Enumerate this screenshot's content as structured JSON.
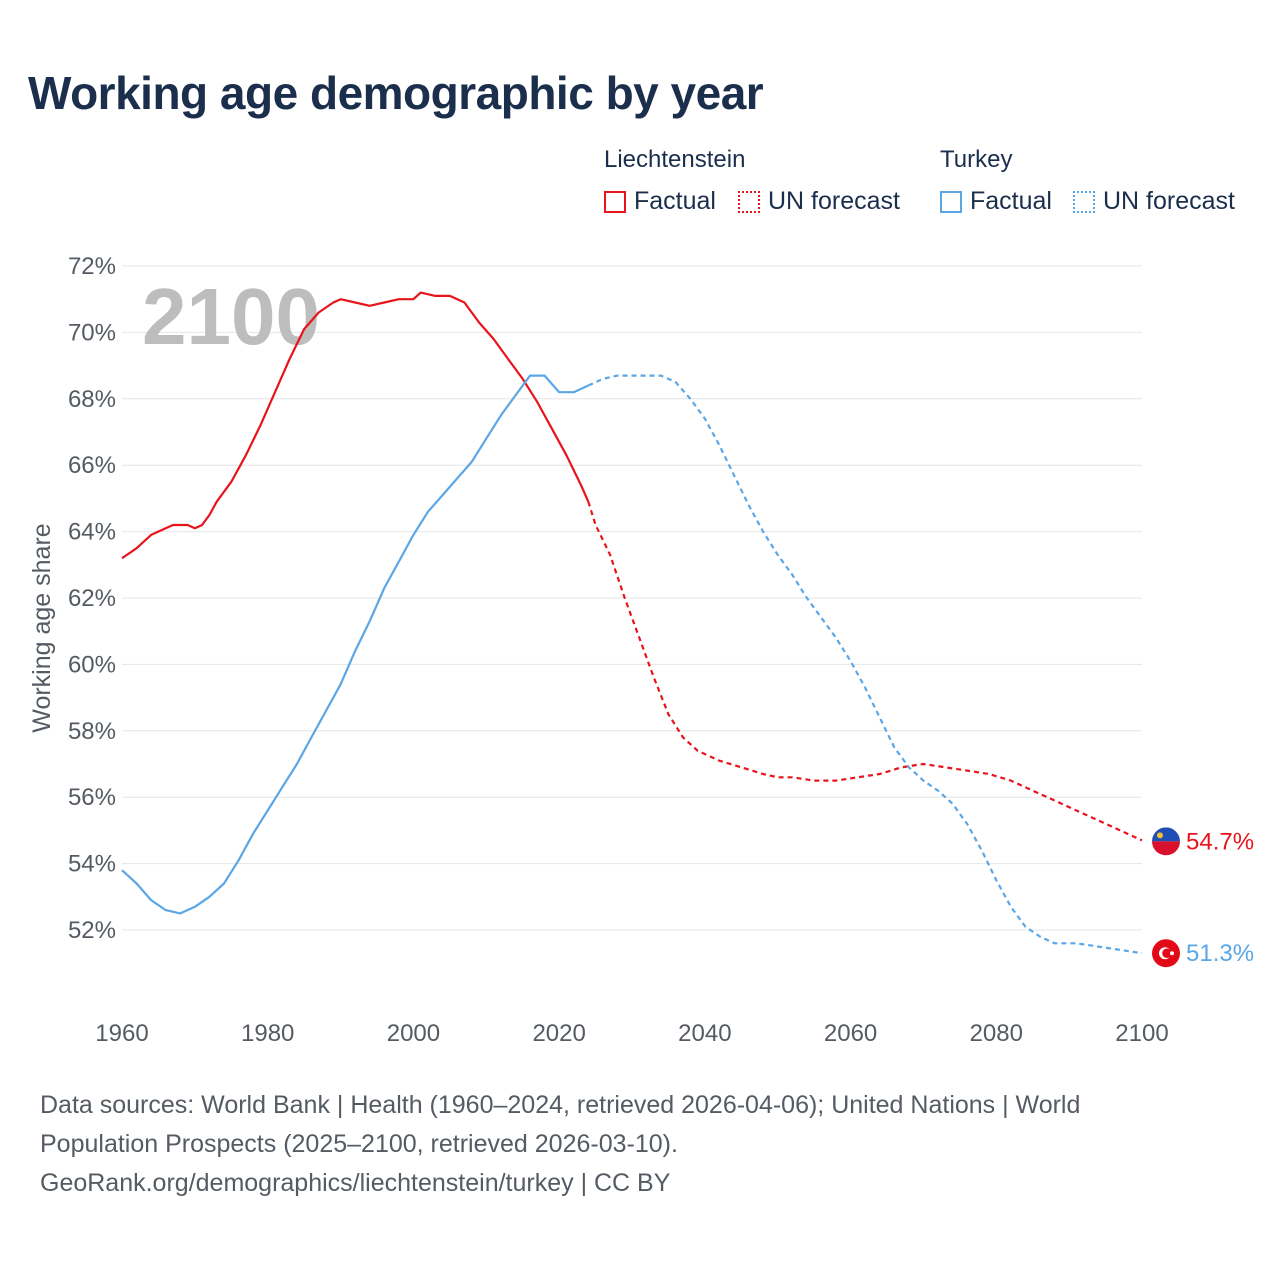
{
  "title": "Working age demographic by year",
  "legend": {
    "liechtenstein": {
      "name": "Liechtenstein",
      "factual": "Factual",
      "forecast": "UN forecast",
      "color": "#e8141c"
    },
    "turkey": {
      "name": "Turkey",
      "factual": "Factual",
      "forecast": "UN forecast",
      "color": "#5aa6e6"
    }
  },
  "source": {
    "line1": "Data sources: World Bank | Health (1960–2024, retrieved 2026-04-06); United Nations | World",
    "line2": "Population Prospects (2025–2100, retrieved 2026-03-10).",
    "line3": "GeoRank.org/demographics/liechtenstein/turkey | CC BY"
  },
  "chart_data": {
    "type": "line",
    "title": "Working age demographic by year",
    "ylabel": "Working age share",
    "xlabel": "",
    "year_display": "2100",
    "xlim": [
      1960,
      2100
    ],
    "ylim": [
      50.5,
      72.5
    ],
    "x_ticks": [
      1960,
      1980,
      2000,
      2020,
      2040,
      2060,
      2080,
      2100
    ],
    "x_tick_labels": [
      "1960",
      "1980",
      "2000",
      "2020",
      "2040",
      "2060",
      "2080",
      "2100"
    ],
    "y_ticks": [
      52,
      54,
      56,
      58,
      60,
      62,
      64,
      66,
      68,
      70,
      72
    ],
    "y_tick_labels": [
      "52%",
      "54%",
      "56%",
      "58%",
      "60%",
      "62%",
      "64%",
      "66%",
      "68%",
      "70%",
      "72%"
    ],
    "factual_end_year": 2024,
    "series": [
      {
        "name": "Liechtenstein",
        "color": "#e8141c",
        "end_label": "54.7%",
        "points": [
          [
            1960,
            63.2
          ],
          [
            1962,
            63.5
          ],
          [
            1964,
            63.9
          ],
          [
            1966,
            64.1
          ],
          [
            1967,
            64.2
          ],
          [
            1969,
            64.2
          ],
          [
            1970,
            64.1
          ],
          [
            1971,
            64.2
          ],
          [
            1972,
            64.5
          ],
          [
            1973,
            64.9
          ],
          [
            1975,
            65.5
          ],
          [
            1977,
            66.3
          ],
          [
            1979,
            67.2
          ],
          [
            1981,
            68.2
          ],
          [
            1983,
            69.2
          ],
          [
            1985,
            70.1
          ],
          [
            1987,
            70.6
          ],
          [
            1989,
            70.9
          ],
          [
            1990,
            71.0
          ],
          [
            1992,
            70.9
          ],
          [
            1994,
            70.8
          ],
          [
            1996,
            70.9
          ],
          [
            1998,
            71.0
          ],
          [
            2000,
            71.0
          ],
          [
            2001,
            71.2
          ],
          [
            2003,
            71.1
          ],
          [
            2005,
            71.1
          ],
          [
            2007,
            70.9
          ],
          [
            2009,
            70.3
          ],
          [
            2011,
            69.8
          ],
          [
            2013,
            69.2
          ],
          [
            2015,
            68.6
          ],
          [
            2017,
            67.9
          ],
          [
            2019,
            67.1
          ],
          [
            2021,
            66.3
          ],
          [
            2023,
            65.4
          ],
          [
            2024,
            64.9
          ],
          [
            2025,
            64.2
          ],
          [
            2027,
            63.3
          ],
          [
            2029,
            62.0
          ],
          [
            2031,
            60.8
          ],
          [
            2033,
            59.6
          ],
          [
            2035,
            58.5
          ],
          [
            2037,
            57.8
          ],
          [
            2039,
            57.4
          ],
          [
            2042,
            57.1
          ],
          [
            2045,
            56.9
          ],
          [
            2048,
            56.7
          ],
          [
            2050,
            56.6
          ],
          [
            2052,
            56.6
          ],
          [
            2055,
            56.5
          ],
          [
            2058,
            56.5
          ],
          [
            2061,
            56.6
          ],
          [
            2064,
            56.7
          ],
          [
            2067,
            56.9
          ],
          [
            2070,
            57.0
          ],
          [
            2073,
            56.9
          ],
          [
            2076,
            56.8
          ],
          [
            2079,
            56.7
          ],
          [
            2082,
            56.5
          ],
          [
            2085,
            56.2
          ],
          [
            2088,
            55.9
          ],
          [
            2091,
            55.6
          ],
          [
            2094,
            55.3
          ],
          [
            2097,
            55.0
          ],
          [
            2100,
            54.7
          ]
        ]
      },
      {
        "name": "Turkey",
        "color": "#5aa6e6",
        "end_label": "51.3%",
        "points": [
          [
            1960,
            53.8
          ],
          [
            1962,
            53.4
          ],
          [
            1964,
            52.9
          ],
          [
            1966,
            52.6
          ],
          [
            1968,
            52.5
          ],
          [
            1970,
            52.7
          ],
          [
            1972,
            53.0
          ],
          [
            1974,
            53.4
          ],
          [
            1976,
            54.1
          ],
          [
            1978,
            54.9
          ],
          [
            1980,
            55.6
          ],
          [
            1982,
            56.3
          ],
          [
            1984,
            57.0
          ],
          [
            1986,
            57.8
          ],
          [
            1988,
            58.6
          ],
          [
            1990,
            59.4
          ],
          [
            1992,
            60.4
          ],
          [
            1994,
            61.3
          ],
          [
            1996,
            62.3
          ],
          [
            1998,
            63.1
          ],
          [
            2000,
            63.9
          ],
          [
            2002,
            64.6
          ],
          [
            2004,
            65.1
          ],
          [
            2006,
            65.6
          ],
          [
            2008,
            66.1
          ],
          [
            2010,
            66.8
          ],
          [
            2012,
            67.5
          ],
          [
            2014,
            68.1
          ],
          [
            2016,
            68.7
          ],
          [
            2018,
            68.7
          ],
          [
            2020,
            68.2
          ],
          [
            2022,
            68.2
          ],
          [
            2024,
            68.4
          ],
          [
            2026,
            68.6
          ],
          [
            2028,
            68.7
          ],
          [
            2031,
            68.7
          ],
          [
            2034,
            68.7
          ],
          [
            2036,
            68.5
          ],
          [
            2038,
            68.0
          ],
          [
            2040,
            67.4
          ],
          [
            2042,
            66.6
          ],
          [
            2044,
            65.7
          ],
          [
            2046,
            64.8
          ],
          [
            2048,
            64.0
          ],
          [
            2050,
            63.3
          ],
          [
            2052,
            62.7
          ],
          [
            2054,
            62.0
          ],
          [
            2056,
            61.4
          ],
          [
            2058,
            60.8
          ],
          [
            2060,
            60.1
          ],
          [
            2062,
            59.3
          ],
          [
            2064,
            58.4
          ],
          [
            2066,
            57.5
          ],
          [
            2068,
            56.9
          ],
          [
            2070,
            56.5
          ],
          [
            2072,
            56.2
          ],
          [
            2074,
            55.8
          ],
          [
            2076,
            55.2
          ],
          [
            2078,
            54.4
          ],
          [
            2080,
            53.5
          ],
          [
            2082,
            52.7
          ],
          [
            2084,
            52.1
          ],
          [
            2086,
            51.8
          ],
          [
            2088,
            51.6
          ],
          [
            2091,
            51.6
          ],
          [
            2094,
            51.5
          ],
          [
            2097,
            51.4
          ],
          [
            2100,
            51.3
          ]
        ]
      }
    ]
  }
}
